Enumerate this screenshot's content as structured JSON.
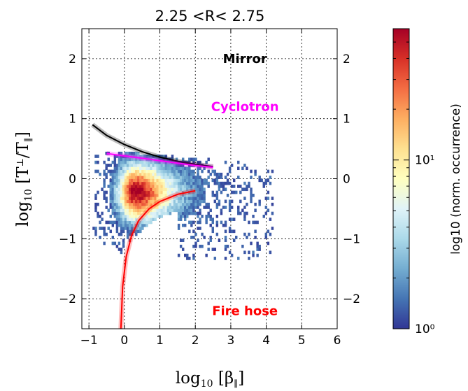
{
  "chart_data": {
    "type": "heatmap",
    "title": "2.25  <R<  2.75",
    "xlabel": "log10 [β∥]",
    "ylabel": "log10 [T⊥/T∥]",
    "xlim": [
      -1.2,
      6
    ],
    "ylim": [
      -2.5,
      2.5
    ],
    "xticks": [
      "−1",
      "0",
      "1",
      "2",
      "3",
      "4",
      "5",
      "6"
    ],
    "xtick_values": [
      -1,
      0,
      1,
      2,
      3,
      4,
      5,
      6
    ],
    "yticks": [
      "2",
      "1",
      "0",
      "−1",
      "−2"
    ],
    "ytick_values": [
      2,
      1,
      0,
      -1,
      -2
    ],
    "grid": true,
    "colorbar": {
      "label": "log10  (norm. occurrence)",
      "ticks": [
        "10¹",
        "10⁰"
      ],
      "tick_values": [
        10,
        1
      ],
      "range": [
        1,
        60
      ],
      "scale": "log",
      "colormap": "RdYlBu_r"
    },
    "density": {
      "peak_x": 0.3,
      "peak_y": -0.25,
      "x_extent": [
        -0.9,
        4.2
      ],
      "y_extent": [
        -1.35,
        0.45
      ]
    },
    "thresholds": [
      {
        "name": "Mirror",
        "color": "#000000",
        "x": [
          -0.9,
          -0.5,
          0,
          0.5,
          1.0,
          1.5,
          2.0,
          2.5
        ],
        "y": [
          0.9,
          0.72,
          0.57,
          0.45,
          0.36,
          0.29,
          0.24,
          0.2
        ]
      },
      {
        "name": "Cyclotron",
        "color": "#ff00ff",
        "x": [
          -0.5,
          0,
          0.5,
          1.0,
          1.5,
          2.0,
          2.5
        ],
        "y": [
          0.42,
          0.38,
          0.34,
          0.3,
          0.26,
          0.22,
          0.19
        ]
      },
      {
        "name": "Fire hose",
        "color": "#ff0000",
        "x": [
          -0.1,
          -0.05,
          0.05,
          0.2,
          0.4,
          0.7,
          1.0,
          1.5,
          2.0
        ],
        "y": [
          -2.5,
          -1.8,
          -1.3,
          -0.95,
          -0.7,
          -0.5,
          -0.38,
          -0.26,
          -0.2
        ]
      }
    ],
    "annotations": [
      {
        "text": "Mirror",
        "color": "#000000",
        "x": 3.4,
        "y": 2.0
      },
      {
        "text": "Cyclotron",
        "color": "#ff00ff",
        "x": 3.4,
        "y": 1.2
      },
      {
        "text": "Fire hose",
        "color": "#ff0000",
        "x": 3.4,
        "y": -2.2
      }
    ]
  }
}
